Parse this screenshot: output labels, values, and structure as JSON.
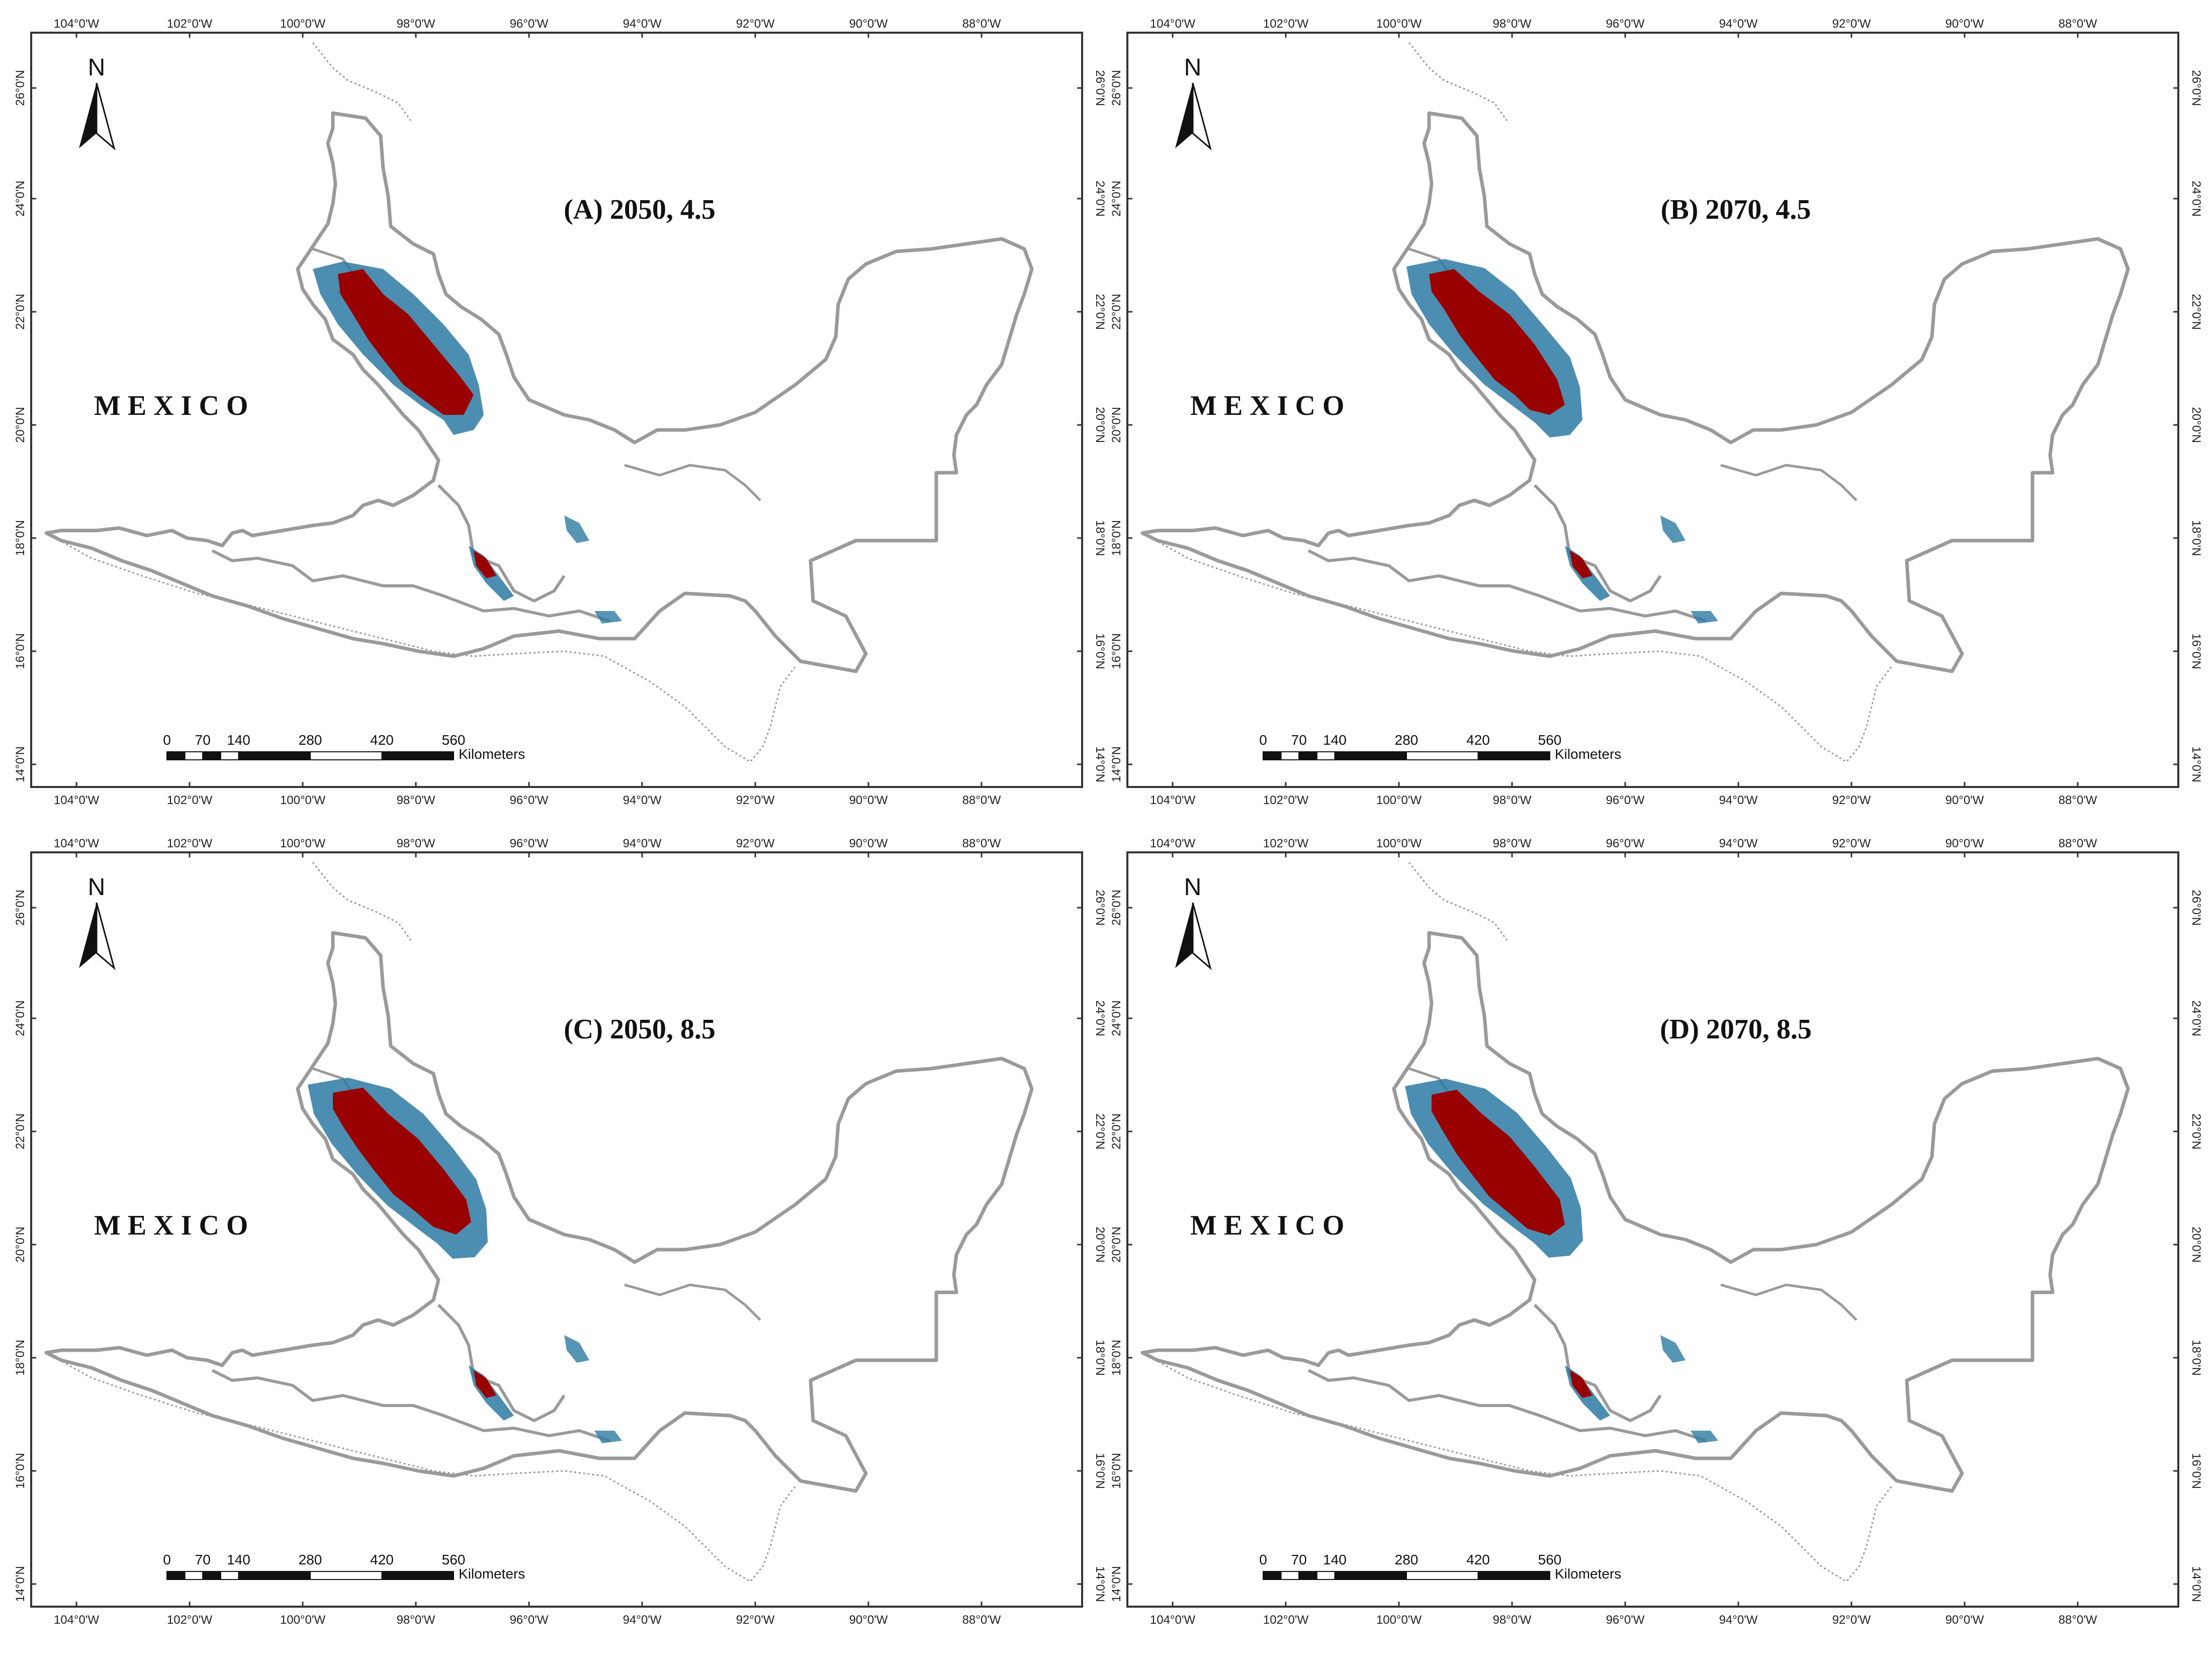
{
  "panels": [
    {
      "title": "(A) 2050, 4.5"
    },
    {
      "title": "(B) 2070, 4.5"
    },
    {
      "title": "(C) 2050, 8.5"
    },
    {
      "title": "(D) 2070, 8.5"
    }
  ],
  "map": {
    "country_label": "MEXICO",
    "north_label": "N",
    "lon_ticks": [
      "104°0'W",
      "102°0'W",
      "100°0'W",
      "98°0'W",
      "96°0'W",
      "94°0'W",
      "92°0'W",
      "90°0'W",
      "88°0'W"
    ],
    "lat_ticks": [
      "26°0'N",
      "24°0'N",
      "22°0'N",
      "20°0'N",
      "18°0'N",
      "16°0'N",
      "14°0'N"
    ],
    "scale_numbers": [
      "0",
      "70",
      "140",
      "280",
      "420",
      "560"
    ],
    "scale_unit": "Kilometers",
    "colors": {
      "outline": "#9a9a9a",
      "suitable_high": "#990000",
      "suitable_low": "#2d7aa3",
      "frame": "#333333"
    }
  }
}
